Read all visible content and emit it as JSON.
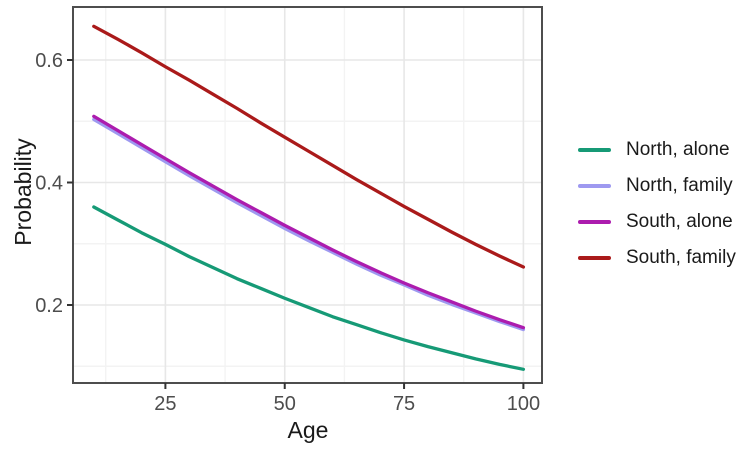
{
  "chart_data": {
    "type": "line",
    "title": "",
    "xlabel": "Age",
    "ylabel": "Probability",
    "x": [
      10,
      15,
      20,
      25,
      30,
      35,
      40,
      45,
      50,
      55,
      60,
      65,
      70,
      75,
      80,
      85,
      90,
      95,
      100
    ],
    "series": [
      {
        "name": "North, alone",
        "color": "#169a76",
        "values": [
          0.36,
          0.339,
          0.318,
          0.299,
          0.279,
          0.261,
          0.243,
          0.227,
          0.211,
          0.196,
          0.181,
          0.168,
          0.155,
          0.143,
          0.132,
          0.122,
          0.112,
          0.103,
          0.095
        ]
      },
      {
        "name": "North, family",
        "color": "#9e99f0",
        "values": [
          0.503,
          0.48,
          0.457,
          0.434,
          0.411,
          0.389,
          0.367,
          0.346,
          0.325,
          0.305,
          0.286,
          0.267,
          0.249,
          0.233,
          0.216,
          0.201,
          0.187,
          0.173,
          0.16
        ]
      },
      {
        "name": "South, alone",
        "color": "#ac1cae",
        "values": [
          0.508,
          0.485,
          0.462,
          0.439,
          0.416,
          0.394,
          0.372,
          0.351,
          0.33,
          0.31,
          0.29,
          0.271,
          0.253,
          0.236,
          0.22,
          0.205,
          0.19,
          0.176,
          0.163
        ]
      },
      {
        "name": "South, family",
        "color": "#aa1a1a",
        "values": [
          0.655,
          0.634,
          0.612,
          0.589,
          0.567,
          0.544,
          0.521,
          0.497,
          0.474,
          0.451,
          0.428,
          0.405,
          0.383,
          0.361,
          0.34,
          0.319,
          0.299,
          0.28,
          0.262
        ]
      }
    ],
    "x_ticks": {
      "values": [
        25,
        50,
        75,
        100
      ],
      "labels": [
        "25",
        "50",
        "75",
        "100"
      ]
    },
    "y_ticks": {
      "values": [
        0.2,
        0.4,
        0.6
      ],
      "labels": [
        "0.2",
        "0.4",
        "0.6"
      ]
    },
    "x_minor_breaks": [
      12.5,
      37.5,
      62.5,
      87.5
    ],
    "y_minor_breaks": [
      0.1,
      0.3,
      0.5
    ],
    "xlim": [
      5.7,
      104.0
    ],
    "ylim": [
      0.073,
      0.687
    ],
    "grid": "on",
    "legend_position": "right",
    "palette": {
      "panel_background": "#ffffff",
      "panel_border": "#4d4d4d",
      "grid_major": "#e7e7e7",
      "grid_minor": "#f3f3f3",
      "tick_mark": "#333333",
      "tick_label": "#4d4d4d",
      "axis_title": "#1a1a1a",
      "legend_text": "#1a1a1a"
    }
  }
}
